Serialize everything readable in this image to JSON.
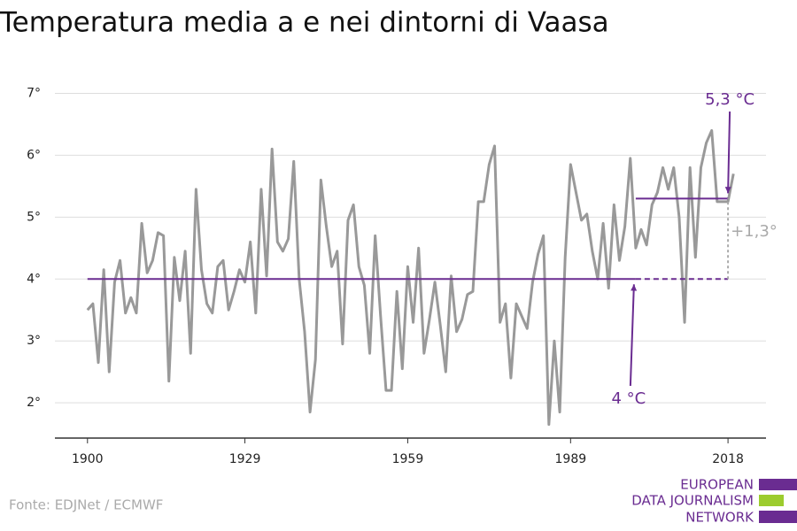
{
  "chart_data": {
    "type": "line",
    "title": "Temperatura media a e nei dintorni di Vaasa",
    "source": "Fonte: EDJNet / ECMWF",
    "logo": [
      "EUROPEAN",
      "DATA JOURNALISM",
      "NETWORK"
    ],
    "x": [
      1900,
      1901,
      1902,
      1903,
      1904,
      1905,
      1906,
      1907,
      1908,
      1909,
      1910,
      1911,
      1912,
      1913,
      1914,
      1915,
      1916,
      1917,
      1918,
      1919,
      1920,
      1921,
      1922,
      1923,
      1924,
      1925,
      1926,
      1927,
      1928,
      1929,
      1930,
      1931,
      1932,
      1933,
      1934,
      1935,
      1936,
      1937,
      1938,
      1939,
      1940,
      1941,
      1942,
      1943,
      1944,
      1945,
      1946,
      1947,
      1948,
      1949,
      1950,
      1951,
      1952,
      1953,
      1954,
      1955,
      1956,
      1957,
      1958,
      1959,
      1960,
      1961,
      1962,
      1963,
      1964,
      1965,
      1966,
      1967,
      1968,
      1969,
      1970,
      1971,
      1972,
      1973,
      1974,
      1975,
      1976,
      1977,
      1978,
      1979,
      1980,
      1981,
      1982,
      1983,
      1984,
      1985,
      1986,
      1987,
      1988,
      1989,
      1990,
      1991,
      1992,
      1993,
      1994,
      1995,
      1996,
      1997,
      1998,
      1999,
      2000,
      2001,
      2002,
      2003,
      2004,
      2005,
      2006,
      2007,
      2008,
      2009,
      2010,
      2011,
      2012,
      2013,
      2014,
      2015,
      2016,
      2017,
      2018,
      2019
    ],
    "series": [
      {
        "color": "#999999",
        "values": [
          3.5,
          3.6,
          2.65,
          4.15,
          2.5,
          3.95,
          4.3,
          3.45,
          3.7,
          3.45,
          4.9,
          4.1,
          4.3,
          4.75,
          4.7,
          2.35,
          4.35,
          3.65,
          4.45,
          2.8,
          5.45,
          4.15,
          3.6,
          3.45,
          4.2,
          4.3,
          3.5,
          3.8,
          4.15,
          3.95,
          4.6,
          3.45,
          5.45,
          4.05,
          6.1,
          4.6,
          4.45,
          4.65,
          5.9,
          4.0,
          3.15,
          1.85,
          2.7,
          5.6,
          4.85,
          4.2,
          4.45,
          2.95,
          4.95,
          5.2,
          4.2,
          3.9,
          2.8,
          4.7,
          3.4,
          2.2,
          2.2,
          3.8,
          2.55,
          4.2,
          3.3,
          4.5,
          2.8,
          3.35,
          3.95,
          3.25,
          2.5,
          4.05,
          3.15,
          3.35,
          3.75,
          3.8,
          5.25,
          5.25,
          5.85,
          6.15,
          3.3,
          3.6,
          2.4,
          3.6,
          3.4,
          3.2,
          3.95,
          4.4,
          4.7,
          1.65,
          3.0,
          1.85,
          4.35,
          5.85,
          5.4,
          4.95,
          5.05,
          4.45,
          4.0,
          4.9,
          3.85,
          5.2,
          4.3,
          4.85,
          5.95,
          4.5,
          4.8,
          4.55,
          5.2,
          5.4,
          5.8,
          5.45,
          5.8,
          5.0,
          3.3,
          5.8,
          4.35,
          5.8,
          6.2,
          6.4,
          5.25,
          5.25,
          5.25,
          5.7
        ]
      }
    ],
    "reference_lines": [
      {
        "label": "4 °C",
        "value": 4,
        "x": [
          1900,
          2001,
          2018
        ]
      },
      {
        "label": "5,3 °C",
        "value": 5.3,
        "x": [
          2001,
          2018
        ]
      }
    ],
    "difference": {
      "label": "+1,3°",
      "value": 1.3,
      "x": 2018
    },
    "accent_color": "#6a2c91",
    "xlim": [
      1894,
      2025
    ],
    "xticks": [
      1900,
      1929,
      1959,
      1989,
      2018
    ],
    "ylim": [
      1.43,
      7.15
    ],
    "yticks": [
      {
        "value": 2,
        "label": "2°"
      },
      {
        "value": 3,
        "label": "3°"
      },
      {
        "value": 4,
        "label": "4°"
      },
      {
        "value": 5,
        "label": "5°"
      },
      {
        "value": 6,
        "label": "6°"
      },
      {
        "value": 7,
        "label": "7°"
      }
    ],
    "grid": true
  }
}
